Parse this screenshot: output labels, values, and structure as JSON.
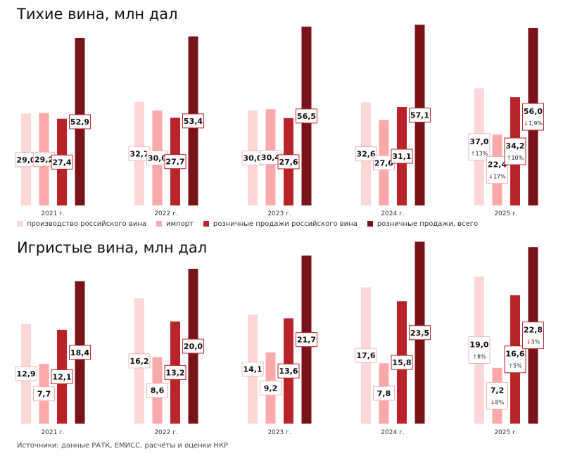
{
  "colors": [
    "#fdd6d6",
    "#f9a9a9",
    "#b8242a",
    "#7a1318"
  ],
  "up_color": "#2ea66a",
  "down_color": "#d42a2a",
  "legend": [
    "производство российского вина",
    "импорт",
    "розничные продажи российского вина",
    "розничные продажи, всего"
  ],
  "source": "Источники: данные РАТК, ЕМИСС, расчёты и оценки НКР",
  "chart_data": [
    {
      "type": "bar",
      "title": "Тихие вина, млн дал",
      "categories": [
        "2021 г.",
        "2022 г.",
        "2023 г.",
        "2024 г.",
        "2025 г."
      ],
      "series": [
        {
          "name": "производство российского вина",
          "values": [
            29.0,
            32.7,
            30.0,
            32.6,
            37.0
          ],
          "labels": [
            "29,0",
            "32,7",
            "30,0",
            "32,6",
            "37,0"
          ]
        },
        {
          "name": "импорт",
          "values": [
            29.2,
            30.0,
            30.4,
            27.0,
            22.4
          ],
          "labels": [
            "29,2",
            "30,0",
            "30,4",
            "27,0",
            "22,4"
          ]
        },
        {
          "name": "розничные продажи российского вина",
          "values": [
            27.4,
            27.7,
            27.6,
            31.1,
            34.2
          ],
          "labels": [
            "27,4",
            "27,7",
            "27,6",
            "31,1",
            "34,2"
          ]
        },
        {
          "name": "розничные продажи, всего",
          "values": [
            52.9,
            53.4,
            56.5,
            57.1,
            56.0
          ],
          "labels": [
            "52,9",
            "53,4",
            "56,5",
            "57,1",
            "56,0"
          ]
        }
      ],
      "changes_2025": [
        {
          "dir": "up",
          "text": "13%"
        },
        {
          "dir": "down",
          "text": "17%"
        },
        {
          "dir": "up",
          "text": "10%"
        },
        {
          "dir": "down",
          "text": "1,9%"
        }
      ],
      "ylim": [
        0,
        58
      ]
    },
    {
      "type": "bar",
      "title": "Игристые вина, млн дал",
      "categories": [
        "2021 г.",
        "2022 г.",
        "2023 г.",
        "2024 г.",
        "2025 г."
      ],
      "series": [
        {
          "name": "производство российского вина",
          "values": [
            12.9,
            16.2,
            14.1,
            17.6,
            19.0
          ],
          "labels": [
            "12,9",
            "16,2",
            "14,1",
            "17,6",
            "19,0"
          ]
        },
        {
          "name": "импорт",
          "values": [
            7.7,
            8.6,
            9.2,
            7.8,
            7.2
          ],
          "labels": [
            "7,7",
            "8,6",
            "9,2",
            "7,8",
            "7,2"
          ]
        },
        {
          "name": "розничные продажи российского вина",
          "values": [
            12.1,
            13.2,
            13.6,
            15.8,
            16.6
          ],
          "labels": [
            "12,1",
            "13,2",
            "13,6",
            "15,8",
            "16,6"
          ]
        },
        {
          "name": "розничные продажи, всего",
          "values": [
            18.4,
            20.0,
            21.7,
            23.5,
            22.8
          ],
          "labels": [
            "18,4",
            "20,0",
            "21,7",
            "23,5",
            "22,8"
          ]
        }
      ],
      "changes_2025": [
        {
          "dir": "up",
          "text": "8%"
        },
        {
          "dir": "down",
          "text": "8%"
        },
        {
          "dir": "up",
          "text": "5%"
        },
        {
          "dir": "down",
          "text": "3%"
        }
      ],
      "ylim": [
        0,
        23.5
      ]
    }
  ]
}
